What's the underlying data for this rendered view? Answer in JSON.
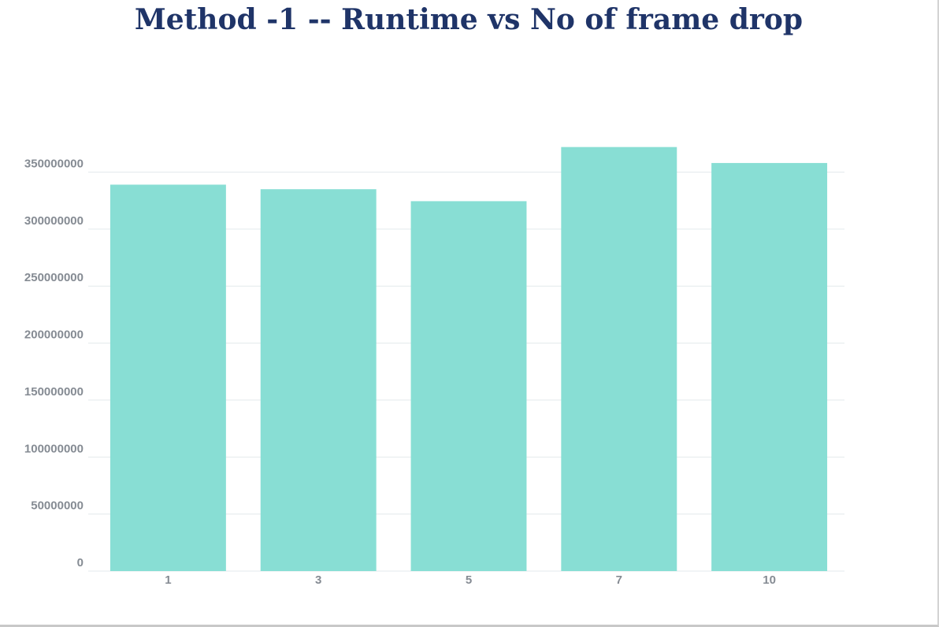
{
  "chart_data": {
    "type": "bar",
    "title": "Method -1 -- Runtime vs No of frame drop",
    "xlabel": "",
    "ylabel": "",
    "categories": [
      "1",
      "3",
      "5",
      "7",
      "10"
    ],
    "values": [
      339000000,
      335000000,
      324500000,
      372000000,
      358000000
    ],
    "ylim": [
      0,
      350000000
    ],
    "yticks": [
      0,
      50000000,
      100000000,
      150000000,
      200000000,
      250000000,
      300000000,
      350000000
    ],
    "ytick_labels": [
      "0",
      "50000000",
      "100000000",
      "150000000",
      "200000000",
      "250000000",
      "300000000",
      "350000000"
    ],
    "grid": true,
    "legend": "none",
    "colors": {
      "bar": "#88ded4",
      "grid": "#e3eaec",
      "title": "#1f3468",
      "tick_label": "#858b93"
    }
  }
}
